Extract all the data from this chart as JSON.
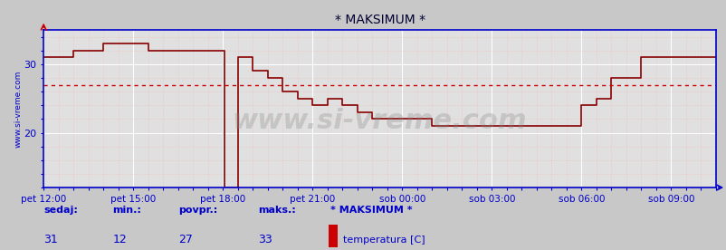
{
  "title": "* MAKSIMUM *",
  "bg_color": "#c8c8c8",
  "plot_bg_color": "#e0e0e0",
  "line_color": "#880000",
  "hline_color": "#cc0000",
  "hline_value": 27,
  "axis_color": "#0000cc",
  "text_color": "#0000cc",
  "ylabel_left": "www.si-vreme.com",
  "xtick_labels": [
    "pet 12:00",
    "pet 15:00",
    "pet 18:00",
    "pet 21:00",
    "sob 00:00",
    "sob 03:00",
    "sob 06:00",
    "sob 09:00"
  ],
  "xtick_positions": [
    0,
    3,
    6,
    9,
    12,
    15,
    18,
    21
  ],
  "ylim_min": 12,
  "ylim_max": 35,
  "xlim_min": 0,
  "xlim_max": 22.5,
  "sedaj": 31,
  "min_val": 12,
  "povpr": 27,
  "maks": 33,
  "legend_label": "temperatura [C]",
  "legend_color": "#cc0000",
  "watermark": "www.si-vreme.com",
  "time_series": [
    [
      0.0,
      31
    ],
    [
      1.0,
      32
    ],
    [
      2.0,
      33
    ],
    [
      3.5,
      32
    ],
    [
      6.0,
      32
    ],
    [
      6.05,
      12
    ],
    [
      6.5,
      12
    ],
    [
      6.51,
      31
    ],
    [
      7.0,
      29
    ],
    [
      7.5,
      28
    ],
    [
      8.0,
      26
    ],
    [
      8.5,
      25
    ],
    [
      9.0,
      24
    ],
    [
      9.5,
      25
    ],
    [
      10.0,
      24
    ],
    [
      10.5,
      23
    ],
    [
      11.0,
      22
    ],
    [
      12.5,
      22
    ],
    [
      13.0,
      21
    ],
    [
      17.5,
      21
    ],
    [
      18.0,
      24
    ],
    [
      18.5,
      25
    ],
    [
      19.0,
      28
    ],
    [
      20.0,
      31
    ],
    [
      22.5,
      31
    ]
  ]
}
